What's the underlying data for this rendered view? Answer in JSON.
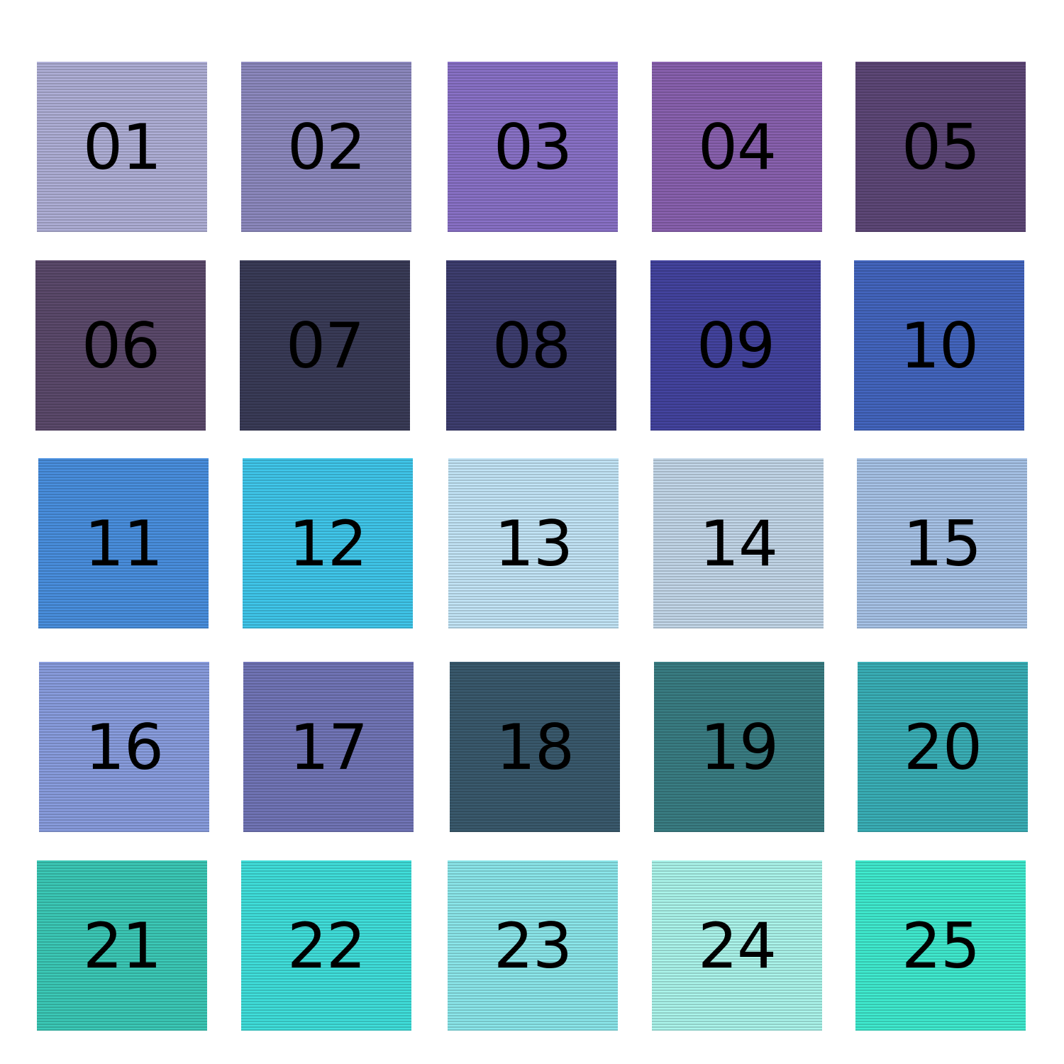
{
  "tiles": [
    {
      "label": "01",
      "color": "#b0b0d8"
    },
    {
      "label": "02",
      "color": "#8e8ac0"
    },
    {
      "label": "03",
      "color": "#8a72c8"
    },
    {
      "label": "04",
      "color": "#8a62b0"
    },
    {
      "label": "05",
      "color": "#5e4878"
    },
    {
      "label": "06",
      "color": "#5c4a6c"
    },
    {
      "label": "07",
      "color": "#3a3c58"
    },
    {
      "label": "08",
      "color": "#3e3e70"
    },
    {
      "label": "09",
      "color": "#4444a0"
    },
    {
      "label": "10",
      "color": "#4466c0"
    },
    {
      "label": "11",
      "color": "#4a90e0"
    },
    {
      "label": "12",
      "color": "#40c8ec"
    },
    {
      "label": "13",
      "color": "#c4e6f8"
    },
    {
      "label": "14",
      "color": "#c4d8ea"
    },
    {
      "label": "15",
      "color": "#a8c4e8"
    },
    {
      "label": "16",
      "color": "#8a9ee0"
    },
    {
      "label": "17",
      "color": "#7276b8"
    },
    {
      "label": "18",
      "color": "#3a5a6e"
    },
    {
      "label": "19",
      "color": "#3a7e84"
    },
    {
      "label": "20",
      "color": "#3ab0b8"
    },
    {
      "label": "21",
      "color": "#3ccab8"
    },
    {
      "label": "22",
      "color": "#40e0dc"
    },
    {
      "label": "23",
      "color": "#8ce8ec"
    },
    {
      "label": "24",
      "color": "#acf6ec"
    },
    {
      "label": "25",
      "color": "#40ecd0"
    }
  ]
}
